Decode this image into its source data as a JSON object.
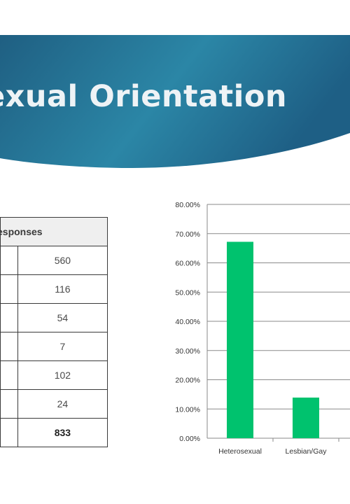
{
  "banner": {
    "title": "exual Orientation"
  },
  "table": {
    "header": "esponses",
    "values": [
      "560",
      "116",
      "54",
      "7",
      "102",
      "24"
    ],
    "total": "833"
  },
  "colors": {
    "banner_dark": "#1f5f82",
    "banner_mid": "#2b86a6",
    "bar": "#00c26e",
    "grid": "#8a8a8a",
    "table_border": "#3a3a3a",
    "table_header_bg": "#efefef"
  },
  "chart_data": {
    "type": "bar",
    "categories": [
      "Heterosexual",
      "Lesbian/Gay"
    ],
    "values": [
      0.672,
      0.139
    ],
    "ylim": [
      0,
      0.8
    ],
    "yticks": [
      0,
      0.1,
      0.2,
      0.3,
      0.4,
      0.5,
      0.6,
      0.7,
      0.8
    ],
    "ytick_labels": [
      "0.00%",
      "10.00%",
      "20.00%",
      "30.00%",
      "40.00%",
      "50.00%",
      "60.00%",
      "70.00%",
      "80.00%"
    ],
    "grid": true,
    "title": "",
    "xlabel": "",
    "ylabel": ""
  }
}
